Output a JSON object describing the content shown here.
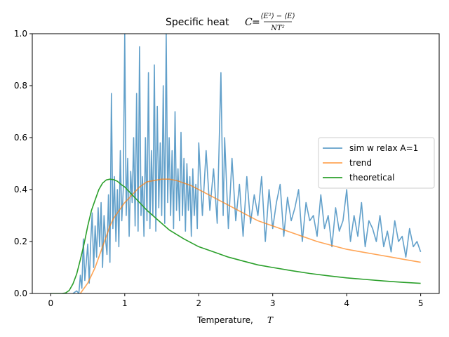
{
  "chart_data": {
    "type": "line",
    "title": {
      "prefix": "Specific heat ",
      "symbol": "C",
      "equals": " = ",
      "numerator": "⟨E²⟩ − ⟨E⟩",
      "denominator": "NT²"
    },
    "xlabel": "Temperature, ",
    "xlabel_symbol": "T",
    "ylabel": "",
    "xlim": [
      -0.25,
      5.25
    ],
    "ylim": [
      0,
      1.0
    ],
    "xticks": [
      0,
      1,
      2,
      3,
      4,
      5
    ],
    "xtick_labels": [
      "0",
      "1",
      "2",
      "3",
      "4",
      "5"
    ],
    "yticks": [
      0,
      0.2,
      0.4,
      0.6,
      0.8,
      1.0
    ],
    "ytick_labels": [
      "0.0",
      "0.2",
      "0.4",
      "0.6",
      "0.8",
      "1.0"
    ],
    "grid": false,
    "legend_position": "right",
    "series": [
      {
        "name": "sim w relax A=1",
        "color": "#1f77b4",
        "opacity": 0.7,
        "x": [
          0.3,
          0.35,
          0.38,
          0.4,
          0.42,
          0.44,
          0.46,
          0.48,
          0.5,
          0.52,
          0.54,
          0.56,
          0.58,
          0.6,
          0.62,
          0.64,
          0.66,
          0.68,
          0.7,
          0.72,
          0.74,
          0.76,
          0.78,
          0.8,
          0.82,
          0.84,
          0.86,
          0.88,
          0.9,
          0.92,
          0.94,
          0.96,
          0.98,
          1.0,
          1.02,
          1.04,
          1.06,
          1.08,
          1.1,
          1.12,
          1.14,
          1.16,
          1.18,
          1.2,
          1.22,
          1.24,
          1.26,
          1.28,
          1.3,
          1.32,
          1.34,
          1.36,
          1.38,
          1.4,
          1.42,
          1.44,
          1.46,
          1.48,
          1.5,
          1.52,
          1.54,
          1.56,
          1.58,
          1.6,
          1.62,
          1.64,
          1.66,
          1.68,
          1.7,
          1.72,
          1.74,
          1.76,
          1.78,
          1.8,
          1.82,
          1.84,
          1.86,
          1.88,
          1.9,
          1.92,
          1.94,
          1.96,
          1.98,
          2.0,
          2.05,
          2.1,
          2.15,
          2.2,
          2.25,
          2.3,
          2.33,
          2.35,
          2.4,
          2.45,
          2.5,
          2.55,
          2.6,
          2.65,
          2.7,
          2.75,
          2.8,
          2.85,
          2.9,
          2.95,
          3.0,
          3.05,
          3.1,
          3.15,
          3.2,
          3.25,
          3.3,
          3.35,
          3.4,
          3.45,
          3.5,
          3.55,
          3.6,
          3.65,
          3.7,
          3.75,
          3.8,
          3.85,
          3.9,
          3.95,
          4.0,
          4.05,
          4.1,
          4.15,
          4.2,
          4.25,
          4.3,
          4.35,
          4.4,
          4.45,
          4.5,
          4.55,
          4.6,
          4.65,
          4.7,
          4.75,
          4.8,
          4.85,
          4.9,
          4.95,
          5.0
        ],
        "values": [
          0.0,
          0.01,
          0.0,
          0.07,
          0.02,
          0.21,
          0.05,
          0.12,
          0.19,
          0.04,
          0.2,
          0.31,
          0.1,
          0.26,
          0.14,
          0.33,
          0.18,
          0.35,
          0.1,
          0.3,
          0.21,
          0.15,
          0.38,
          0.12,
          0.77,
          0.25,
          0.45,
          0.2,
          0.4,
          0.18,
          0.55,
          0.28,
          0.4,
          1.0,
          0.3,
          0.52,
          0.22,
          0.47,
          0.35,
          0.6,
          0.26,
          0.77,
          0.24,
          0.95,
          0.3,
          0.45,
          0.22,
          0.6,
          0.28,
          0.85,
          0.25,
          0.55,
          0.3,
          0.88,
          0.24,
          0.72,
          0.33,
          0.58,
          0.3,
          0.8,
          0.27,
          1.0,
          0.35,
          0.6,
          0.3,
          0.55,
          0.25,
          0.7,
          0.32,
          0.48,
          0.28,
          0.62,
          0.3,
          0.52,
          0.24,
          0.5,
          0.32,
          0.45,
          0.22,
          0.48,
          0.3,
          0.42,
          0.25,
          0.58,
          0.3,
          0.55,
          0.32,
          0.48,
          0.27,
          0.85,
          0.3,
          0.6,
          0.25,
          0.52,
          0.28,
          0.42,
          0.22,
          0.45,
          0.27,
          0.38,
          0.3,
          0.45,
          0.2,
          0.4,
          0.25,
          0.35,
          0.42,
          0.22,
          0.37,
          0.28,
          0.33,
          0.4,
          0.2,
          0.35,
          0.28,
          0.3,
          0.22,
          0.38,
          0.25,
          0.3,
          0.18,
          0.33,
          0.24,
          0.28,
          0.4,
          0.2,
          0.3,
          0.22,
          0.35,
          0.18,
          0.28,
          0.25,
          0.2,
          0.3,
          0.18,
          0.24,
          0.16,
          0.28,
          0.2,
          0.22,
          0.14,
          0.25,
          0.18,
          0.2,
          0.16
        ]
      },
      {
        "name": "trend",
        "color": "#ff7f0e",
        "opacity": 0.7,
        "x": [
          0.4,
          0.45,
          0.5,
          0.55,
          0.6,
          0.65,
          0.7,
          0.75,
          0.8,
          0.85,
          0.9,
          0.95,
          1.0,
          1.1,
          1.2,
          1.3,
          1.4,
          1.5,
          1.6,
          1.7,
          1.8,
          1.9,
          2.0,
          2.2,
          2.4,
          2.6,
          2.8,
          3.0,
          3.2,
          3.4,
          3.6,
          3.8,
          4.0,
          4.2,
          4.4,
          4.6,
          4.8,
          5.0
        ],
        "values": [
          0.0,
          0.02,
          0.04,
          0.07,
          0.1,
          0.14,
          0.18,
          0.22,
          0.26,
          0.29,
          0.31,
          0.33,
          0.35,
          0.38,
          0.41,
          0.43,
          0.435,
          0.44,
          0.44,
          0.435,
          0.425,
          0.415,
          0.4,
          0.37,
          0.34,
          0.31,
          0.28,
          0.26,
          0.24,
          0.22,
          0.2,
          0.185,
          0.17,
          0.16,
          0.15,
          0.14,
          0.13,
          0.12
        ]
      },
      {
        "name": "theoretical",
        "color": "#2ca02c",
        "opacity": 1.0,
        "x": [
          0.0,
          0.1,
          0.15,
          0.2,
          0.25,
          0.3,
          0.35,
          0.4,
          0.45,
          0.5,
          0.55,
          0.6,
          0.65,
          0.7,
          0.75,
          0.8,
          0.85,
          0.9,
          0.95,
          1.0,
          1.1,
          1.2,
          1.3,
          1.4,
          1.5,
          1.6,
          1.8,
          2.0,
          2.2,
          2.4,
          2.6,
          2.8,
          3.0,
          3.25,
          3.5,
          3.75,
          4.0,
          4.25,
          4.5,
          4.75,
          5.0
        ],
        "values": [
          0.0,
          0.0,
          0.0,
          0.002,
          0.012,
          0.037,
          0.075,
          0.13,
          0.19,
          0.26,
          0.32,
          0.36,
          0.4,
          0.425,
          0.437,
          0.44,
          0.438,
          0.432,
          0.42,
          0.41,
          0.38,
          0.35,
          0.32,
          0.295,
          0.27,
          0.245,
          0.21,
          0.18,
          0.16,
          0.14,
          0.125,
          0.11,
          0.1,
          0.088,
          0.077,
          0.068,
          0.06,
          0.054,
          0.048,
          0.043,
          0.039
        ]
      }
    ]
  }
}
